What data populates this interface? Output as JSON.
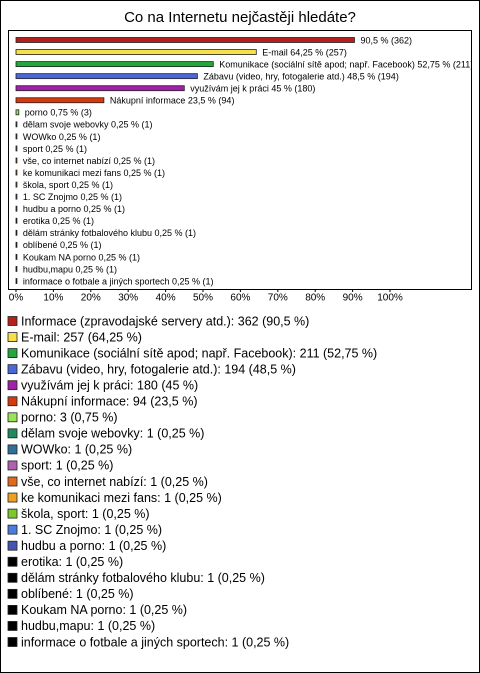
{
  "chart_data": {
    "type": "bar",
    "orientation": "horizontal",
    "title": "Co na Internetu nejčastěji hledáte?",
    "values": [
      90.5,
      64.25,
      52.75,
      48.5,
      45,
      23.5,
      0.75,
      0.25,
      0.25,
      0.25,
      0.25,
      0.25,
      0.25,
      0.25,
      0.25,
      0.25,
      0.25,
      0.25,
      0.25,
      0.25,
      0.25
    ],
    "value_labels": [
      "90,5 % (362)",
      "E-mail 64,25 % (257)",
      "Komunikace (sociální sítě apod; např. Facebook) 52,75 % (211)",
      "Zábavu (video, hry, fotogalerie atd.) 48,5 % (194)",
      "využívám jej k práci 45 % (180)",
      "Nákupní informace 23,5 % (94)",
      "porno 0,75 % (3)",
      "dělam svoje webovky 0,25 % (1)",
      "WOWko 0,25 % (1)",
      "sport 0,25 % (1)",
      "vše, co internet nabízí 0,25 % (1)",
      "ke komunikaci mezi fans 0,25 % (1)",
      "škola, sport 0,25 % (1)",
      "1. SC Znojmo 0,25 % (1)",
      "hudbu a porno 0,25 % (1)",
      "erotika 0,25 % (1)",
      "dělám stránky fotbalového klubu 0,25 % (1)",
      "oblíbené 0,25 % (1)",
      "Koukam NA porno 0,25 % (1)",
      "hudbu,mapu 0,25 % (1)",
      "informace o fotbale a jiných sportech 0,25 % (1)"
    ],
    "legend_labels": [
      "Informace (zpravodajské servery atd.): 362 (90,5 %)",
      "E-mail: 257 (64,25 %)",
      "Komunikace (sociální sítě apod; např. Facebook): 211 (52,75 %)",
      "Zábavu (video, hry, fotogalerie atd.): 194 (48,5 %)",
      "využívám jej k práci: 180 (45 %)",
      "Nákupní informace: 94 (23,5 %)",
      "porno: 3 (0,75 %)",
      "dělam svoje webovky: 1 (0,25 %)",
      "WOWko: 1 (0,25 %)",
      "sport: 1 (0,25 %)",
      "vše, co internet nabízí: 1 (0,25 %)",
      "ke komunikaci mezi fans: 1 (0,25 %)",
      "škola, sport: 1 (0,25 %)",
      "1. SC Znojmo: 1 (0,25 %)",
      "hudbu a porno: 1 (0,25 %)",
      "erotika: 1 (0,25 %)",
      "dělám stránky fotbalového klubu: 1 (0,25 %)",
      "oblíbené: 1 (0,25 %)",
      "Koukam NA porno: 1 (0,25 %)",
      "hudbu,mapu: 1 (0,25 %)",
      "informace o fotbale a jiných sportech: 1 (0,25 %)"
    ],
    "colors": [
      "#b5201a",
      "#f5e04a",
      "#22a83a",
      "#4a66d8",
      "#a020a8",
      "#d8380e",
      "#9be25a",
      "#1e8a5e",
      "#2f6f9a",
      "#b060b0",
      "#e06a1c",
      "#f0a020",
      "#7cc82a",
      "#4a7be0",
      "#4454b0",
      "#000000",
      "#000000",
      "#000000",
      "#000000",
      "#000000",
      "#000000"
    ],
    "xlim": [
      0,
      100
    ],
    "xticks": [
      {
        "value": 0,
        "label": "0%"
      },
      {
        "value": 10,
        "label": "10%"
      },
      {
        "value": 20,
        "label": "20%"
      },
      {
        "value": 30,
        "label": "30%"
      },
      {
        "value": 40,
        "label": "40%"
      },
      {
        "value": 50,
        "label": "50%"
      },
      {
        "value": 60,
        "label": "60%"
      },
      {
        "value": 70,
        "label": "70%"
      },
      {
        "value": 80,
        "label": "80%"
      },
      {
        "value": 90,
        "label": "90%"
      },
      {
        "value": 100,
        "label": "100%"
      }
    ]
  }
}
